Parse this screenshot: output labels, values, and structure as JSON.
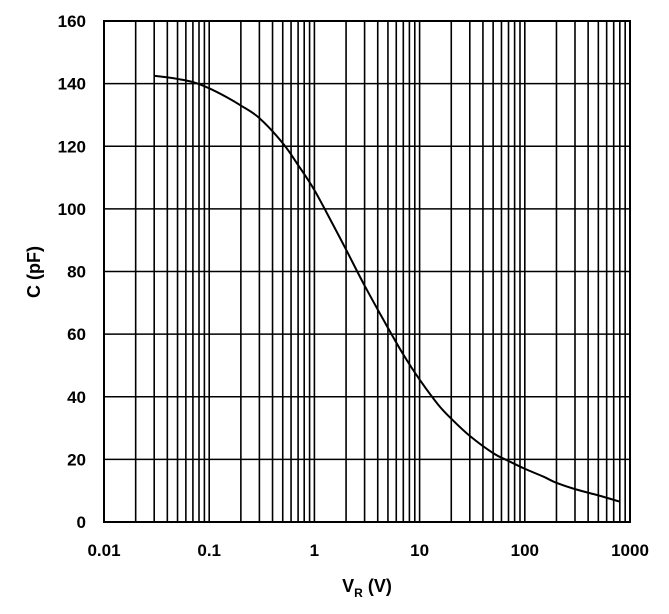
{
  "chart_data": {
    "type": "line",
    "title": "",
    "xlabel": {
      "main": "V",
      "sub": "R",
      "unit": "(V)"
    },
    "ylabel": "C (pF)",
    "x_scale": "log",
    "xlim": [
      0.01,
      1000
    ],
    "ylim": [
      0,
      160
    ],
    "x_ticks": [
      0.01,
      0.1,
      1,
      10,
      100,
      1000
    ],
    "x_tick_labels": [
      "0.01",
      "0.1",
      "1",
      "10",
      "100",
      "1000"
    ],
    "y_ticks": [
      0,
      20,
      40,
      60,
      80,
      100,
      120,
      140,
      160
    ],
    "y_tick_labels": [
      "0",
      "20",
      "40",
      "60",
      "80",
      "100",
      "120",
      "140",
      "160"
    ],
    "grid": true,
    "legend": "none",
    "series": [
      {
        "x": [
          0.03,
          0.04,
          0.05,
          0.07,
          0.1,
          0.15,
          0.2,
          0.3,
          0.5,
          0.7,
          1,
          1.5,
          2,
          3,
          5,
          7,
          10,
          15,
          20,
          30,
          50,
          70,
          100,
          150,
          200,
          300,
          500,
          800
        ],
        "y": [
          142.5,
          142,
          141.5,
          140.5,
          138.5,
          135.5,
          133,
          129,
          121,
          114,
          106,
          95,
          87,
          75.5,
          62,
          53.5,
          45.5,
          37.5,
          33,
          27.5,
          22,
          19.5,
          17,
          14.5,
          12.5,
          10.5,
          8.5,
          6.5
        ]
      }
    ]
  }
}
